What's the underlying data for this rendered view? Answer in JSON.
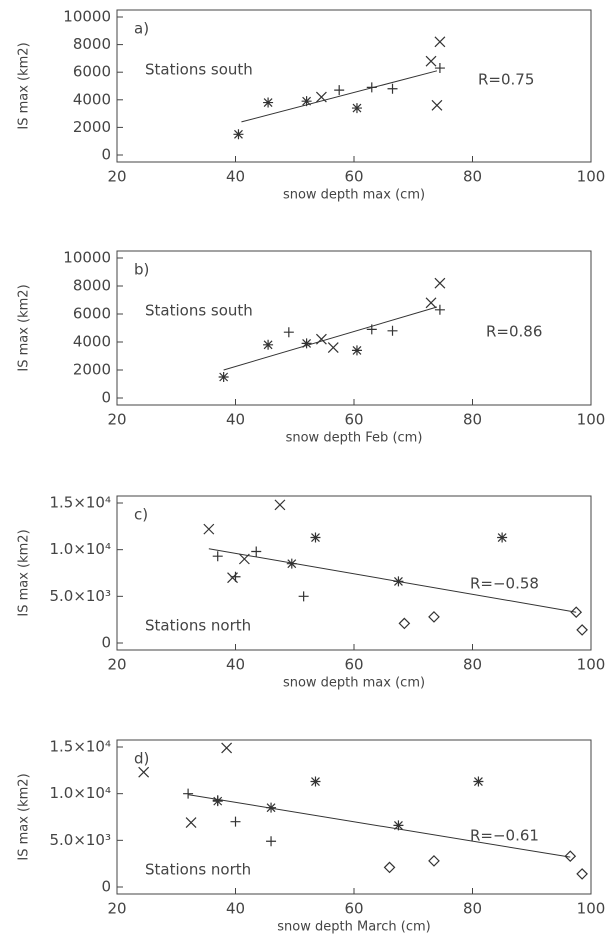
{
  "chart_data": [
    {
      "type": "scatter",
      "letter": "a)",
      "station_label": "Stations south",
      "r_label": "R=0.75",
      "x_label": "snow depth max (cm)",
      "y_label": "IS max (km2)",
      "xlim": [
        20,
        100
      ],
      "xticks": [
        20,
        40,
        60,
        80,
        100
      ],
      "ylim": [
        0,
        10000
      ],
      "yticks": [
        0,
        2000,
        4000,
        6000,
        8000,
        10000
      ],
      "color": "#333333",
      "series": [
        {
          "marker": "asterisk",
          "x": [
            40.5,
            45.5,
            52,
            60.5
          ],
          "values": [
            1500,
            3800,
            3900,
            3400
          ]
        },
        {
          "marker": "plus",
          "x": [
            57.5,
            63,
            66.5,
            74.5
          ],
          "values": [
            4700,
            4900,
            4800,
            6300
          ]
        },
        {
          "marker": "cross",
          "x": [
            54.5,
            73,
            74.5,
            74
          ],
          "values": [
            4200,
            6800,
            8200,
            3600
          ]
        },
        {
          "marker": "line",
          "x": [
            41,
            74
          ],
          "values": [
            2400,
            6100
          ]
        }
      ]
    },
    {
      "type": "scatter",
      "letter": "b)",
      "station_label": "Stations south",
      "r_label": "R=0.86",
      "x_label": "snow depth Feb (cm)",
      "y_label": "IS max (km2)",
      "xlim": [
        20,
        100
      ],
      "xticks": [
        20,
        40,
        60,
        80,
        100
      ],
      "ylim": [
        0,
        10000
      ],
      "yticks": [
        0,
        2000,
        4000,
        6000,
        8000,
        10000
      ],
      "color": "#333333",
      "series": [
        {
          "marker": "asterisk",
          "x": [
            38,
            45.5,
            52,
            60.5
          ],
          "values": [
            1500,
            3800,
            3900,
            3400
          ]
        },
        {
          "marker": "plus",
          "x": [
            49,
            63,
            66.5,
            74.5
          ],
          "values": [
            4700,
            4900,
            4800,
            6300
          ]
        },
        {
          "marker": "cross",
          "x": [
            54.5,
            56.5,
            73,
            74.5
          ],
          "values": [
            4200,
            3600,
            6800,
            8200
          ]
        },
        {
          "marker": "line",
          "x": [
            38,
            74
          ],
          "values": [
            2000,
            6500
          ]
        }
      ]
    },
    {
      "type": "scatter",
      "letter": "c)",
      "station_label": "Stations north",
      "r_label": "R=−0.58",
      "x_label": "snow depth max (cm)",
      "y_label": "IS max (km2)",
      "xlim": [
        20,
        100
      ],
      "xticks": [
        20,
        40,
        60,
        80,
        100
      ],
      "ylim": [
        0,
        15000
      ],
      "yticks": [
        0,
        {
          "value": 5000,
          "label": "5.0×10³"
        },
        {
          "value": 10000,
          "label": "1.0×10⁴"
        },
        {
          "value": 15000,
          "label": "1.5×10⁴"
        }
      ],
      "color": "#333333",
      "series": [
        {
          "marker": "cross",
          "x": [
            35.5,
            47.5,
            39.5,
            41.5
          ],
          "values": [
            12200,
            14800,
            7000,
            9000
          ]
        },
        {
          "marker": "plus",
          "x": [
            37,
            43.5,
            40,
            51.5
          ],
          "values": [
            9300,
            9800,
            7100,
            5000
          ]
        },
        {
          "marker": "asterisk",
          "x": [
            53.5,
            49.5,
            67.5,
            85
          ],
          "values": [
            11300,
            8500,
            6600,
            11300
          ]
        },
        {
          "marker": "diamond",
          "x": [
            68.5,
            73.5,
            97.5,
            98.5
          ],
          "values": [
            2100,
            2800,
            3300,
            1400
          ]
        },
        {
          "marker": "line",
          "x": [
            35.5,
            97.5
          ],
          "values": [
            10100,
            3300
          ]
        }
      ]
    },
    {
      "type": "scatter",
      "letter": "d)",
      "station_label": "Stations north",
      "r_label": "R=−0.61",
      "x_label": "snow depth March (cm)",
      "y_label": "IS max (km2)",
      "xlim": [
        20,
        100
      ],
      "xticks": [
        20,
        40,
        60,
        80,
        100
      ],
      "ylim": [
        0,
        15000
      ],
      "yticks": [
        0,
        {
          "value": 5000,
          "label": "5.0×10³"
        },
        {
          "value": 10000,
          "label": "1.0×10⁴"
        },
        {
          "value": 15000,
          "label": "1.5×10⁴"
        }
      ],
      "color": "#333333",
      "series": [
        {
          "marker": "cross",
          "x": [
            24.5,
            32.5,
            38.5
          ],
          "values": [
            12300,
            6900,
            14900
          ]
        },
        {
          "marker": "plus",
          "x": [
            32,
            37,
            40,
            46
          ],
          "values": [
            10000,
            9300,
            7000,
            4900
          ]
        },
        {
          "marker": "asterisk",
          "x": [
            37,
            46,
            53.5,
            67.5,
            81
          ],
          "values": [
            9200,
            8500,
            11300,
            6600,
            11300
          ]
        },
        {
          "marker": "diamond",
          "x": [
            66,
            73.5,
            96.5,
            98.5
          ],
          "values": [
            2100,
            2800,
            3300,
            1400
          ]
        },
        {
          "marker": "line",
          "x": [
            32,
            96.5
          ],
          "values": [
            9900,
            3200
          ]
        }
      ]
    }
  ]
}
